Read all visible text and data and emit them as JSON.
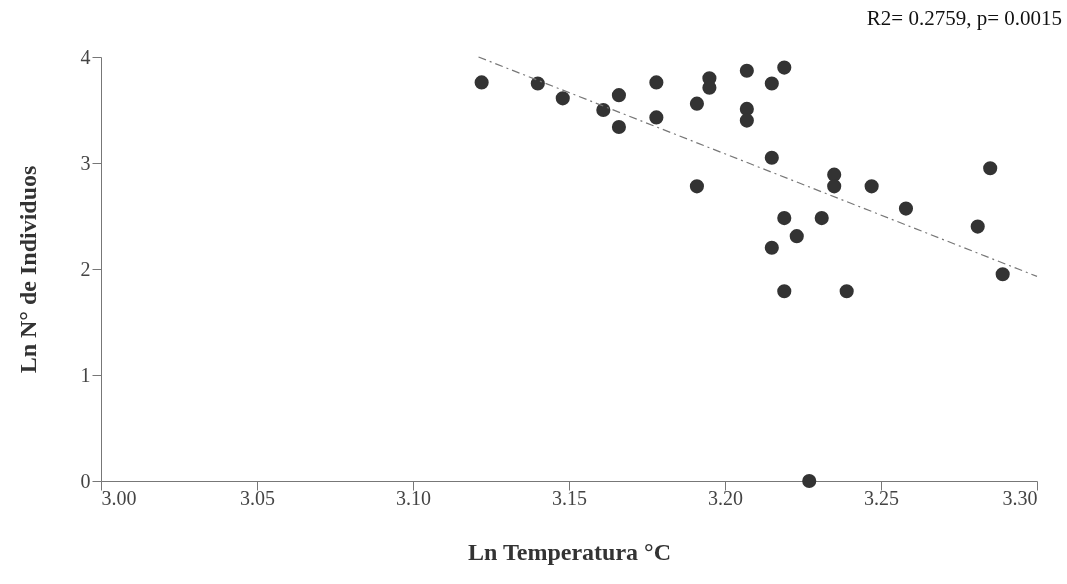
{
  "chart_data": {
    "type": "scatter",
    "xlabel": "Ln Temperatura °C",
    "ylabel": "Ln N° de Individuos",
    "annotations": [
      "R2= 0.2759, p= 0.0015"
    ],
    "xlim": [
      3.0,
      3.3
    ],
    "xticks": [
      {
        "value": 3,
        "label": "3.00"
      },
      3.05,
      {
        "value": 3.1,
        "label": "3.10"
      },
      3.15,
      {
        "value": 3.2,
        "label": "3.20"
      },
      3.25,
      {
        "value": 3.3,
        "label": "3.30"
      }
    ],
    "ylim": [
      0,
      4
    ],
    "yticks": [
      0,
      1,
      2,
      3,
      4
    ],
    "grid": false,
    "series": [
      {
        "color": "#333333",
        "marker": "circle",
        "x": [
          3.122,
          3.14,
          3.148,
          3.161,
          3.166,
          3.166,
          3.178,
          3.178,
          3.191,
          3.191,
          3.195,
          3.195,
          3.207,
          3.207,
          3.207,
          3.215,
          3.219,
          3.215,
          3.235,
          3.235,
          3.247,
          3.258,
          3.285,
          3.281,
          3.289,
          3.219,
          3.231,
          3.223,
          3.215,
          3.219,
          3.239,
          3.227
        ],
        "values": [
          3.76,
          3.75,
          3.61,
          3.5,
          3.64,
          3.34,
          3.76,
          3.43,
          3.56,
          2.78,
          3.8,
          3.71,
          3.87,
          3.51,
          3.4,
          3.75,
          3.9,
          3.05,
          2.89,
          2.78,
          2.78,
          2.57,
          2.95,
          2.4,
          1.95,
          2.48,
          2.48,
          2.31,
          2.2,
          1.79,
          1.79,
          0.0
        ]
      },
      {
        "type": "line",
        "color": "#777777",
        "line_style": "dashed",
        "marker": "none",
        "x": [
          3.121,
          3.3
        ],
        "values": [
          4.0,
          1.93
        ]
      }
    ]
  }
}
